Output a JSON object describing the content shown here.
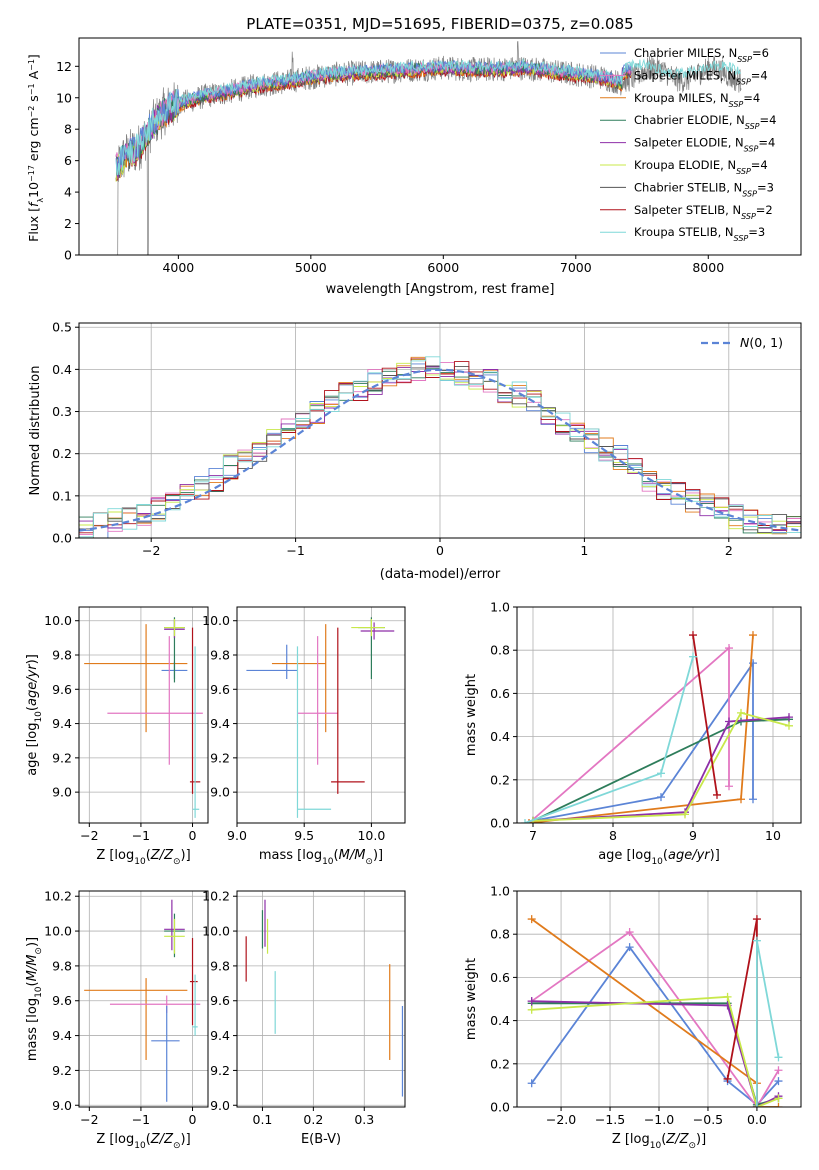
{
  "title": "PLATE=0351, MJD=51695, FIBERID=0375, z=0.085",
  "colors": {
    "Chabrier MILES": "#5b84d6",
    "Salpeter MILES": "#e377c2",
    "Kroupa MILES": "#e07b1c",
    "Chabrier ELODIE": "#2e7d5b",
    "Salpeter ELODIE": "#8e2fa8",
    "Kroupa ELODIE": "#c8e84a",
    "Chabrier STELIB": "#555555",
    "Salpeter STELIB": "#b0121b",
    "Kroupa STELIB": "#7fd8d8",
    "data": "#808080",
    "gaussian": "#5b84d6"
  },
  "chart_data": [
    {
      "panel": "spectrum",
      "type": "line",
      "title": "PLATE=0351, MJD=51695, FIBERID=0375, z=0.085",
      "xlabel": "wavelength [Angstrom, rest frame]",
      "ylabel": "Flux [f_λ10^-17 erg cm^-2 s^-1 A^-1]",
      "xlim": [
        3250,
        8700
      ],
      "ylim": [
        0,
        13.8
      ],
      "xticks": [
        4000,
        5000,
        6000,
        7000,
        8000
      ],
      "yticks": [
        0,
        2,
        4,
        6,
        8,
        10,
        12
      ],
      "legend_position": "top-right",
      "legend": [
        "Chabrier MILES, N_SSP=6",
        "Salpeter MILES, N_SSP=4",
        "Kroupa MILES, N_SSP=4",
        "Chabrier ELODIE, N_SSP=4",
        "Salpeter ELODIE, N_SSP=4",
        "Kroupa ELODIE, N_SSP=4",
        "Chabrier STELIB, N_SSP=3",
        "Salpeter STELIB, N_SSP=2",
        "Kroupa STELIB, N_SSP=3"
      ],
      "continuum": {
        "x": [
          3530,
          3600,
          3700,
          3800,
          3900,
          4000,
          4200,
          4400,
          4600,
          4800,
          5000,
          5200,
          5400,
          5600,
          5800,
          6000,
          6200,
          6400,
          6600,
          6800,
          7000,
          7200,
          7350
        ],
        "y": [
          5.5,
          6.3,
          6.8,
          8.2,
          9.2,
          9.6,
          10.1,
          10.4,
          10.8,
          11.0,
          11.3,
          11.5,
          11.6,
          11.7,
          11.8,
          11.9,
          11.8,
          11.8,
          11.9,
          11.7,
          11.5,
          11.3,
          10.9
        ]
      },
      "kroupa_stelib_extent": [
        3530,
        8250
      ]
    },
    {
      "panel": "residuals",
      "type": "line",
      "xlabel": "(data-model)/error",
      "ylabel": "Normed distribution",
      "xlim": [
        -2.5,
        2.5
      ],
      "ylim": [
        0,
        0.51
      ],
      "xticks": [
        -2,
        -1,
        0,
        1,
        2
      ],
      "yticks": [
        0.0,
        0.1,
        0.2,
        0.3,
        0.4,
        0.5
      ],
      "legend": "N(0,1)",
      "legend_position": "top-right",
      "gaussian": {
        "mean": 0,
        "sigma": 1
      },
      "histogram": {
        "bin_width": 0.1,
        "start": -2.5,
        "values": [
          0.02,
          0.03,
          0.04,
          0.05,
          0.06,
          0.07,
          0.09,
          0.1,
          0.12,
          0.14,
          0.17,
          0.19,
          0.21,
          0.23,
          0.26,
          0.28,
          0.3,
          0.32,
          0.34,
          0.35,
          0.37,
          0.38,
          0.39,
          0.4,
          0.4,
          0.4,
          0.39,
          0.38,
          0.37,
          0.35,
          0.34,
          0.32,
          0.29,
          0.27,
          0.25,
          0.23,
          0.21,
          0.19,
          0.17,
          0.14,
          0.12,
          0.11,
          0.09,
          0.08,
          0.07,
          0.05,
          0.04,
          0.04,
          0.03,
          0.03
        ]
      }
    },
    {
      "panel": "age-vs-Z",
      "type": "scatter",
      "xlabel": "Z [log10(Z/Z⊙)]",
      "ylabel": "age [log10(age/yr)]",
      "xlim": [
        -2.2,
        0.3
      ],
      "ylim": [
        8.82,
        10.08
      ],
      "xticks": [
        -2,
        -1,
        0
      ],
      "yticks": [
        9.0,
        9.2,
        9.4,
        9.6,
        9.8,
        10.0
      ],
      "points": [
        {
          "model": "Kroupa MILES",
          "x": -0.9,
          "xerr": [
            1.2,
            0.8
          ],
          "y": 9.75,
          "yerr": [
            0.4,
            0.23
          ]
        },
        {
          "model": "Chabrier MILES",
          "x": -0.35,
          "xerr": [
            0.25,
            0.25
          ],
          "y": 9.71,
          "yerr": [
            0.05,
            0.05
          ]
        },
        {
          "model": "Salpeter MILES",
          "x": -0.45,
          "xerr": [
            1.2,
            0.65
          ],
          "y": 9.46,
          "yerr": [
            0.3,
            0.45
          ]
        },
        {
          "model": "Chabrier ELODIE",
          "x": -0.35,
          "xerr": [
            0.2,
            0.2
          ],
          "y": 9.96,
          "yerr": [
            0.32,
            0.06
          ]
        },
        {
          "model": "Salpeter ELODIE",
          "x": -0.35,
          "xerr": [
            0.2,
            0.2
          ],
          "y": 9.95,
          "yerr": [
            0.05,
            0.05
          ]
        },
        {
          "model": "Kroupa ELODIE",
          "x": -0.35,
          "xerr": [
            0.2,
            0.2
          ],
          "y": 9.96,
          "yerr": [
            0.05,
            0.05
          ]
        },
        {
          "model": "Salpeter STELIB",
          "x": 0.0,
          "xerr": [
            0.05,
            0.15
          ],
          "y": 9.06,
          "yerr": [
            0.07,
            0.9
          ]
        },
        {
          "model": "Kroupa STELIB",
          "x": 0.05,
          "xerr": [
            0.05,
            0.08
          ],
          "y": 8.9,
          "yerr": [
            0.05,
            0.95
          ]
        }
      ]
    },
    {
      "panel": "age-vs-mass",
      "type": "scatter",
      "xlabel": "mass [log10(M/M⊙)]",
      "ylabel": "",
      "xlim": [
        9.0,
        10.25
      ],
      "ylim": [
        8.82,
        10.08
      ],
      "xticks": [
        9.0,
        9.5,
        10.0
      ],
      "yticks": [
        9.0,
        9.2,
        9.4,
        9.6,
        9.8,
        10.0
      ],
      "points": [
        {
          "model": "Chabrier MILES",
          "x": 9.37,
          "xerr": [
            0.3,
            0.08
          ],
          "y": 9.71,
          "yerr": [
            0.05,
            0.15
          ]
        },
        {
          "model": "Kroupa MILES",
          "x": 9.66,
          "xerr": [
            0.4,
            0.0
          ],
          "y": 9.75,
          "yerr": [
            0.4,
            0.23
          ]
        },
        {
          "model": "Salpeter MILES",
          "x": 9.6,
          "xerr": [
            0.15,
            0.15
          ],
          "y": 9.46,
          "yerr": [
            0.3,
            0.45
          ]
        },
        {
          "model": "Chabrier ELODIE",
          "x": 10.0,
          "xerr": [
            0.1,
            0.1
          ],
          "y": 9.96,
          "yerr": [
            0.3,
            0.06
          ]
        },
        {
          "model": "Salpeter ELODIE",
          "x": 10.02,
          "xerr": [
            0.1,
            0.15
          ],
          "y": 9.94,
          "yerr": [
            0.05,
            0.05
          ]
        },
        {
          "model": "Kroupa ELODIE",
          "x": 10.0,
          "xerr": [
            0.15,
            0.1
          ],
          "y": 9.96,
          "yerr": [
            0.05,
            0.05
          ]
        },
        {
          "model": "Salpeter STELIB",
          "x": 9.75,
          "xerr": [
            0.05,
            0.2
          ],
          "y": 9.06,
          "yerr": [
            0.07,
            0.9
          ]
        },
        {
          "model": "Kroupa STELIB",
          "x": 9.45,
          "xerr": [
            0.0,
            0.25
          ],
          "y": 8.9,
          "yerr": [
            0.05,
            0.95
          ]
        }
      ]
    },
    {
      "panel": "mass-weight-vs-age",
      "type": "line",
      "xlabel": "age [log10(age/yr)]",
      "ylabel": "mass weight",
      "xlim": [
        6.8,
        10.35
      ],
      "ylim": [
        0,
        1.0
      ],
      "xticks": [
        7,
        8,
        9,
        10
      ],
      "yticks": [
        0.0,
        0.2,
        0.4,
        0.6,
        0.8,
        1.0
      ],
      "series": [
        {
          "model": "Chabrier MILES",
          "x": [
            7.0,
            8.6,
            9.75,
            9.75
          ],
          "y": [
            0.01,
            0.12,
            0.74,
            0.11
          ]
        },
        {
          "model": "Salpeter MILES",
          "x": [
            6.95,
            9.45,
            9.45
          ],
          "y": [
            0.0,
            0.81,
            0.17
          ]
        },
        {
          "model": "Kroupa MILES",
          "x": [
            6.95,
            9.6,
            9.75
          ],
          "y": [
            0.0,
            0.11,
            0.87
          ]
        },
        {
          "model": "Chabrier ELODIE",
          "x": [
            7.0,
            9.6,
            10.2
          ],
          "y": [
            0.01,
            0.47,
            0.48
          ]
        },
        {
          "model": "Salpeter ELODIE",
          "x": [
            7.0,
            8.9,
            9.45,
            10.2
          ],
          "y": [
            0.01,
            0.05,
            0.47,
            0.49
          ]
        },
        {
          "model": "Kroupa ELODIE",
          "x": [
            7.0,
            8.9,
            9.6,
            10.2
          ],
          "y": [
            0.01,
            0.04,
            0.51,
            0.45
          ]
        },
        {
          "model": "Salpeter STELIB",
          "x": [
            9.0,
            9.3
          ],
          "y": [
            0.87,
            0.13
          ]
        },
        {
          "model": "Kroupa STELIB",
          "x": [
            6.9,
            8.6,
            9.0
          ],
          "y": [
            0.0,
            0.23,
            0.77
          ]
        }
      ]
    },
    {
      "panel": "mass-vs-Z",
      "type": "scatter",
      "xlabel": "Z [log10(Z/Z⊙)]",
      "ylabel": "mass [log10(M/M⊙)]",
      "xlim": [
        -2.2,
        0.3
      ],
      "ylim": [
        8.99,
        10.23
      ],
      "xticks": [
        -2,
        -1,
        0
      ],
      "yticks": [
        9.0,
        9.2,
        9.4,
        9.6,
        9.8,
        10.0,
        10.2
      ],
      "points": [
        {
          "model": "Kroupa MILES",
          "x": -0.9,
          "xerr": [
            1.2,
            0.8
          ],
          "y": 9.66,
          "yerr": [
            0.4,
            0.07
          ]
        },
        {
          "model": "Salpeter MILES",
          "x": -0.5,
          "xerr": [
            1.1,
            0.65
          ],
          "y": 9.58,
          "yerr": [
            0.05,
            0.05
          ]
        },
        {
          "model": "Chabrier MILES",
          "x": -0.5,
          "xerr": [
            0.3,
            0.25
          ],
          "y": 9.37,
          "yerr": [
            0.35,
            0.2
          ]
        },
        {
          "model": "Chabrier ELODIE",
          "x": -0.35,
          "xerr": [
            0.2,
            0.2
          ],
          "y": 10.0,
          "yerr": [
            0.15,
            0.1
          ]
        },
        {
          "model": "Salpeter ELODIE",
          "x": -0.4,
          "xerr": [
            0.15,
            0.25
          ],
          "y": 10.01,
          "yerr": [
            0.12,
            0.17
          ]
        },
        {
          "model": "Kroupa ELODIE",
          "x": -0.35,
          "xerr": [
            0.2,
            0.2
          ],
          "y": 9.97,
          "yerr": [
            0.1,
            0.1
          ]
        },
        {
          "model": "Salpeter STELIB",
          "x": 0.0,
          "xerr": [
            0.05,
            0.1
          ],
          "y": 9.71,
          "yerr": [
            0.25,
            0.25
          ]
        },
        {
          "model": "Kroupa STELIB",
          "x": 0.05,
          "xerr": [
            0.05,
            0.05
          ],
          "y": 9.45,
          "yerr": [
            0.05,
            0.3
          ]
        }
      ]
    },
    {
      "panel": "mass-vs-EBV",
      "type": "scatter",
      "xlabel": "E(B-V)",
      "ylabel": "",
      "xlim": [
        0.05,
        0.38
      ],
      "ylim": [
        8.99,
        10.23
      ],
      "xticks": [
        0.1,
        0.2,
        0.3
      ],
      "yticks": [
        9.0,
        9.2,
        9.4,
        9.6,
        9.8,
        10.0,
        10.2
      ],
      "points": [
        {
          "model": "Salpeter STELIB",
          "x": 0.068,
          "y": 9.84,
          "yerr": [
            0.13,
            0.13
          ]
        },
        {
          "model": "Chabrier ELODIE",
          "x": 0.1,
          "y": 10.02,
          "yerr": [
            0.12,
            0.1
          ]
        },
        {
          "model": "Salpeter ELODIE",
          "x": 0.105,
          "y": 10.06,
          "yerr": [
            0.15,
            0.12
          ]
        },
        {
          "model": "Kroupa ELODIE",
          "x": 0.11,
          "y": 9.97,
          "yerr": [
            0.1,
            0.1
          ]
        },
        {
          "model": "Kroupa STELIB",
          "x": 0.125,
          "y": 9.59,
          "yerr": [
            0.18,
            0.18
          ]
        },
        {
          "model": "Kroupa MILES",
          "x": 0.35,
          "y": 9.53,
          "yerr": [
            0.27,
            0.28
          ]
        },
        {
          "model": "Chabrier MILES",
          "x": 0.375,
          "y": 9.31,
          "yerr": [
            0.26,
            0.26
          ]
        }
      ]
    },
    {
      "panel": "mass-weight-vs-Z",
      "type": "line",
      "xlabel": "Z [log10(Z/Z⊙)]",
      "ylabel": "mass weight",
      "xlim": [
        -2.45,
        0.45
      ],
      "ylim": [
        0,
        1.0
      ],
      "xticks": [
        -2.0,
        -1.5,
        -1.0,
        -0.5,
        0.0
      ],
      "yticks": [
        0.0,
        0.2,
        0.4,
        0.6,
        0.8,
        1.0
      ],
      "series": [
        {
          "model": "Chabrier MILES",
          "x": [
            -2.3,
            -1.3,
            -0.3,
            0.0,
            0.22
          ],
          "y": [
            0.11,
            0.74,
            0.12,
            0.01,
            0.12
          ]
        },
        {
          "model": "Salpeter MILES",
          "x": [
            -2.3,
            -1.3,
            0.0,
            0.22
          ],
          "y": [
            0.49,
            0.81,
            0.0,
            0.17
          ]
        },
        {
          "model": "Kroupa MILES",
          "x": [
            -2.3,
            -0.0,
            0.0,
            0.22
          ],
          "y": [
            0.87,
            0.11,
            0.0,
            0.0
          ]
        },
        {
          "model": "Chabrier ELODIE",
          "x": [
            -2.3,
            -0.3,
            0.0,
            0.22
          ],
          "y": [
            0.48,
            0.48,
            0.01,
            0.04
          ]
        },
        {
          "model": "Salpeter ELODIE",
          "x": [
            -2.3,
            -0.3,
            0.0,
            0.22
          ],
          "y": [
            0.49,
            0.47,
            0.0,
            0.05
          ]
        },
        {
          "model": "Kroupa ELODIE",
          "x": [
            -2.3,
            -0.3,
            0.0,
            0.22
          ],
          "y": [
            0.45,
            0.51,
            0.0,
            0.04
          ]
        },
        {
          "model": "Salpeter STELIB",
          "x": [
            -0.3,
            0.0,
            0.0
          ],
          "y": [
            0.13,
            0.87,
            0.0
          ]
        },
        {
          "model": "Kroupa STELIB",
          "x": [
            0.0,
            0.0,
            0.22
          ],
          "y": [
            0.0,
            0.77,
            0.23
          ]
        }
      ]
    }
  ]
}
